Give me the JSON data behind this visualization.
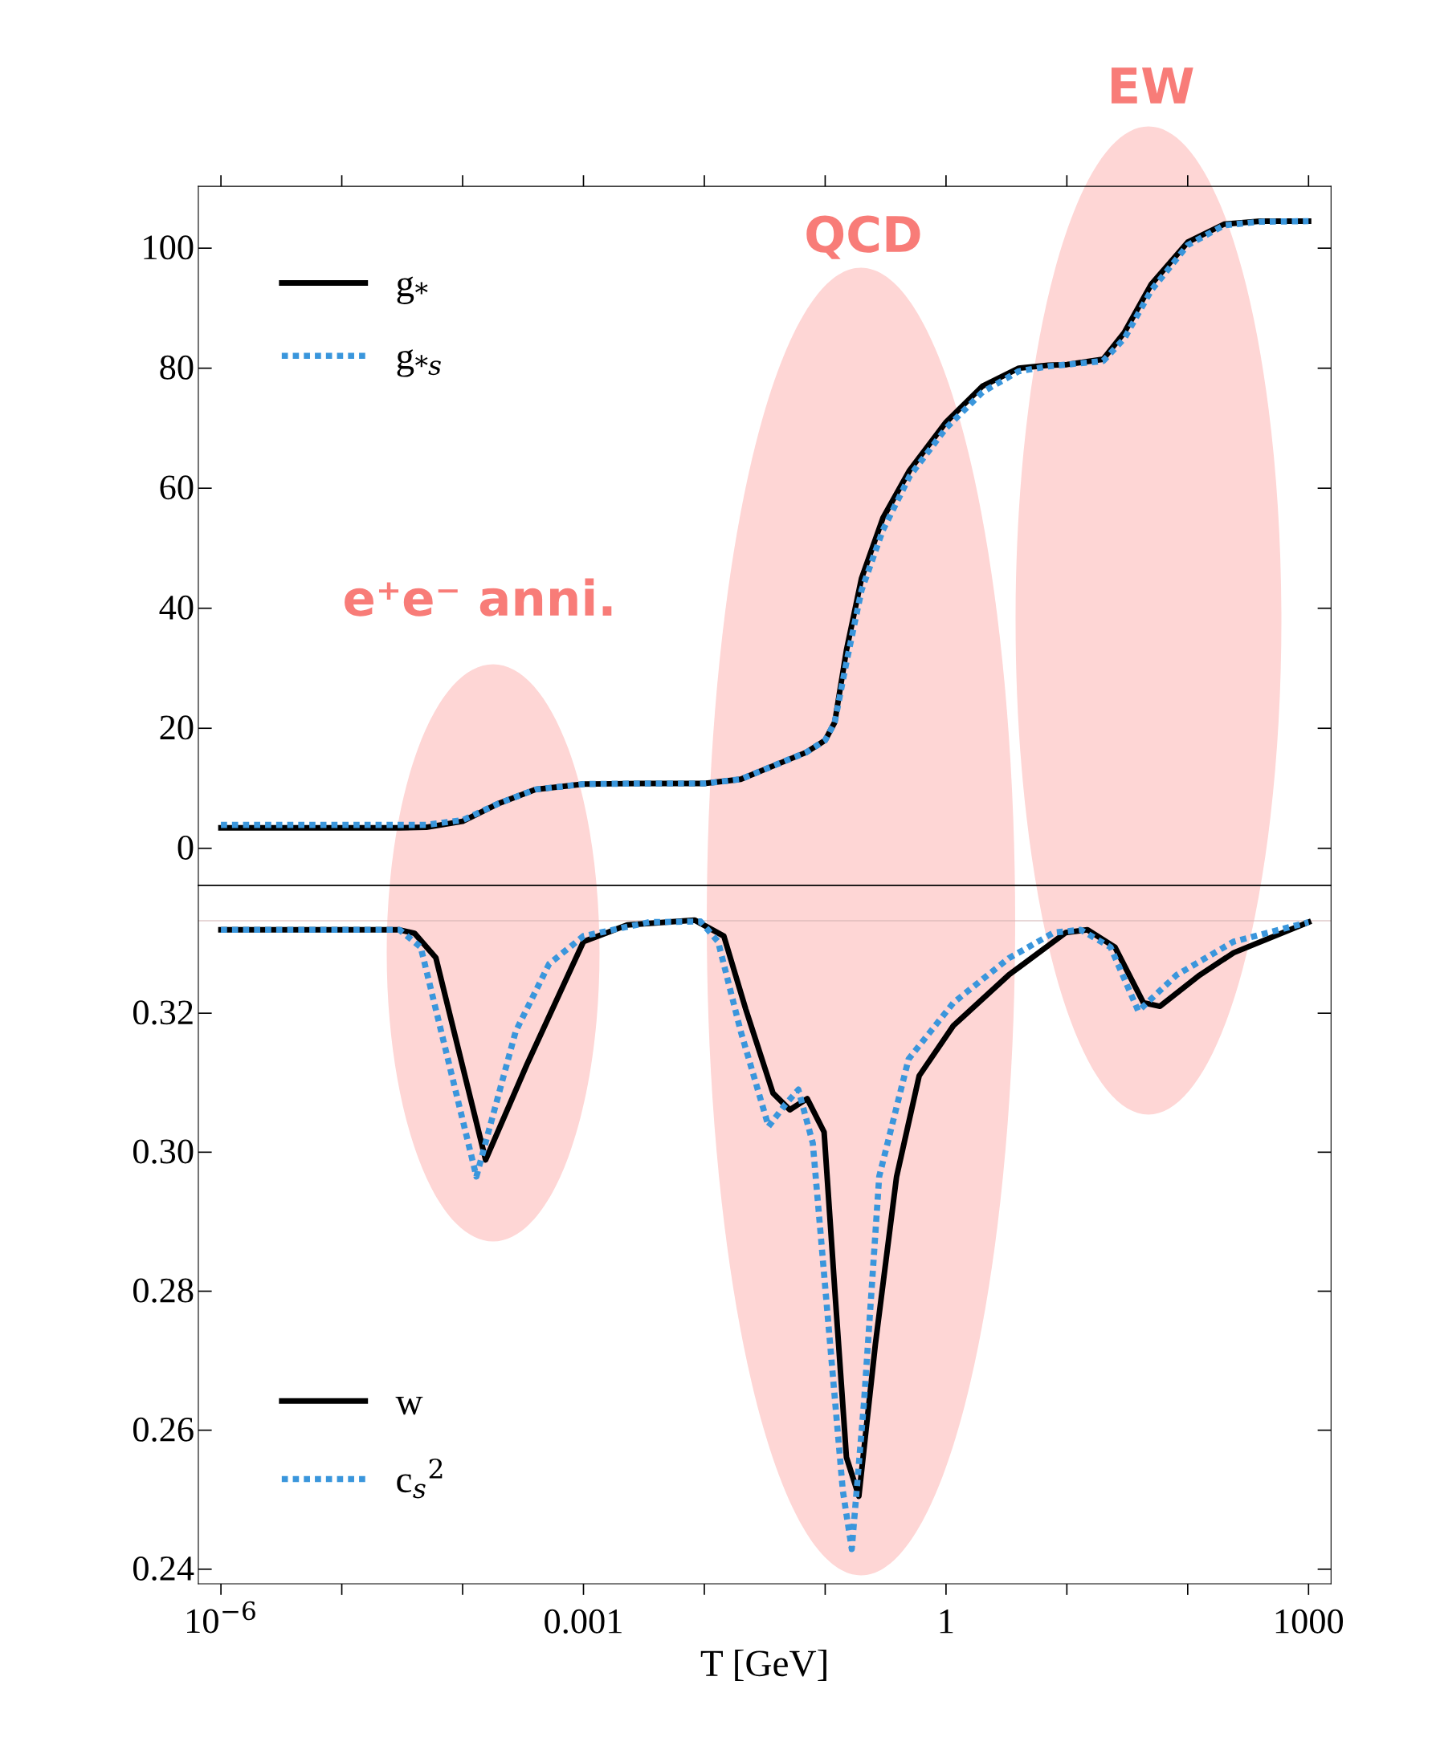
{
  "chart_data": [
    {
      "type": "line",
      "xlabel": null,
      "log": "x",
      "xlim": [
        6.5e-07,
        1535
      ],
      "ylim": [
        -6.2,
        110.3
      ],
      "tick_labels": "y",
      "legend": "top left",
      "marker": "none",
      "grid": false,
      "xticks": [
        {
          "value": 1e-06,
          "label": null
        },
        {
          "value": 1e-05,
          "label": null
        },
        {
          "value": 0.0001,
          "label": null
        },
        {
          "value": 0.001,
          "label": null
        },
        {
          "value": 0.01,
          "label": null
        },
        {
          "value": 0.1,
          "label": null
        },
        {
          "value": 1,
          "label": null
        },
        {
          "value": 10,
          "label": null
        },
        {
          "value": 100,
          "label": null
        },
        {
          "value": 1000,
          "label": null
        }
      ],
      "yticks": [
        0,
        20,
        40,
        60,
        80,
        100
      ],
      "annotations": [
        "e⁺e⁻ anni.",
        "QCD",
        "EW"
      ],
      "series": [
        {
          "name": "g$_{*}$",
          "color": "#000000",
          "line_style": "solid",
          "x": [
            1e-06,
            1e-05,
            3e-05,
            5e-05,
            0.0001,
            0.0002,
            0.0004,
            0.001,
            0.003,
            0.01,
            0.02,
            0.04,
            0.07,
            0.1,
            0.12,
            0.15,
            0.2,
            0.3,
            0.5,
            1,
            2,
            4,
            7,
            10,
            20,
            30,
            50,
            100,
            200,
            400,
            1000
          ],
          "values": [
            3.4,
            3.4,
            3.4,
            3.5,
            4.5,
            7.5,
            9.8,
            10.7,
            10.8,
            10.8,
            11.5,
            14,
            16,
            18,
            21,
            33,
            45,
            55,
            63,
            71,
            77,
            80,
            80.5,
            80.6,
            81.5,
            86,
            94,
            101,
            104,
            104.5,
            104.5
          ]
        },
        {
          "name": "g$_{*s}$",
          "color": "#3a96dc",
          "line_style": "dotted",
          "x": [
            1e-06,
            1e-05,
            3e-05,
            5e-05,
            0.0001,
            0.0002,
            0.0004,
            0.001,
            0.003,
            0.01,
            0.02,
            0.04,
            0.07,
            0.1,
            0.12,
            0.15,
            0.2,
            0.3,
            0.5,
            1,
            2,
            4,
            7,
            10,
            20,
            30,
            50,
            100,
            200,
            400,
            1000
          ],
          "values": [
            3.9,
            3.9,
            3.9,
            3.9,
            4.7,
            7.5,
            9.8,
            10.7,
            10.8,
            10.8,
            11.5,
            14,
            16,
            18,
            21,
            31,
            43,
            53,
            62,
            70,
            76,
            79.5,
            80.3,
            80.6,
            81.2,
            85,
            93,
            100.5,
            103.8,
            104.4,
            104.5
          ]
        }
      ]
    },
    {
      "type": "line",
      "xlabel": "T [GeV]",
      "log": "x",
      "xlim": [
        6.5e-07,
        1535
      ],
      "ylim": [
        0.2379,
        0.3384
      ],
      "legend": "bottom left",
      "marker": "none",
      "grid": false,
      "xticks": [
        {
          "value": 1e-06,
          "label": "10$^{−6}$"
        },
        {
          "value": 1e-05,
          "label": null
        },
        {
          "value": 0.0001,
          "label": null
        },
        {
          "value": 0.001,
          "label": "0.001"
        },
        {
          "value": 0.01,
          "label": null
        },
        {
          "value": 0.1,
          "label": null
        },
        {
          "value": 1,
          "label": "1"
        },
        {
          "value": 10,
          "label": null
        },
        {
          "value": 100,
          "label": null
        },
        {
          "value": 1000,
          "label": "1000"
        }
      ],
      "yticks": [
        {
          "value": 0.24,
          "label": "0.24"
        },
        {
          "value": 0.26,
          "label": "0.26"
        },
        {
          "value": 0.28,
          "label": "0.28"
        },
        {
          "value": 0.3,
          "label": "0.30"
        },
        {
          "value": 0.32,
          "label": "0.32"
        }
      ],
      "ref_lines": [
        {
          "axis": "y",
          "value": 0.3333,
          "label": null,
          "color": "#d0b0b0"
        }
      ],
      "series": [
        {
          "name": "w",
          "color": "#000000",
          "line_style": "solid",
          "x": [
            1e-06,
            1e-05,
            3e-05,
            4e-05,
            6e-05,
            0.000155,
            0.00034,
            0.001,
            0.0023,
            0.0083,
            0.0145,
            0.022,
            0.037,
            0.051,
            0.071,
            0.098,
            0.12,
            0.15,
            0.19,
            0.26,
            0.39,
            0.6,
            1.15,
            3.3,
            9.8,
            14.8,
            25,
            43,
            59,
            126,
            240,
            1000
          ],
          "values": [
            0.332,
            0.332,
            0.332,
            0.3315,
            0.328,
            0.2989,
            0.3126,
            0.3303,
            0.3327,
            0.3334,
            0.3311,
            0.3206,
            0.3085,
            0.3061,
            0.3077,
            0.3029,
            0.2803,
            0.2561,
            0.2505,
            0.2723,
            0.2965,
            0.311,
            0.3182,
            0.3255,
            0.3316,
            0.332,
            0.3295,
            0.3215,
            0.321,
            0.3255,
            0.3287,
            0.3331
          ]
        },
        {
          "name": "c$_{s}$$^{2}$",
          "color": "#3a96dc",
          "line_style": "dotted",
          "x": [
            1e-06,
            1e-05,
            3e-05,
            4.5e-05,
            0.00013,
            0.000275,
            0.00052,
            0.001,
            0.0035,
            0.0093,
            0.013,
            0.02,
            0.034,
            0.047,
            0.06,
            0.079,
            0.11,
            0.14,
            0.166,
            0.21,
            0.28,
            0.49,
            1.15,
            3.3,
            7.8,
            13,
            23,
            39,
            81,
            240,
            1000
          ],
          "values": [
            0.332,
            0.332,
            0.332,
            0.3295,
            0.2965,
            0.3174,
            0.3271,
            0.3311,
            0.3331,
            0.3332,
            0.3303,
            0.3174,
            0.3037,
            0.3069,
            0.309,
            0.3013,
            0.2723,
            0.2513,
            0.2429,
            0.2642,
            0.2965,
            0.3134,
            0.3215,
            0.3279,
            0.3316,
            0.332,
            0.3295,
            0.3203,
            0.3255,
            0.3303,
            0.3331
          ]
        }
      ]
    }
  ]
}
